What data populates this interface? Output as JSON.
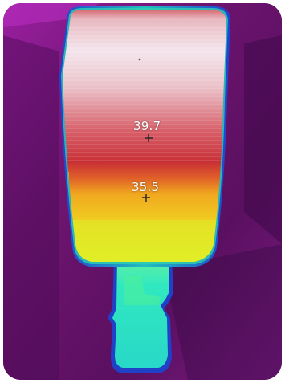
{
  "thermal_image": {
    "palette": "iron",
    "subject": "street-lamp-head",
    "colors": {
      "background": "#7a1a78",
      "background_dark": "#4a0c55",
      "hot_top": "#f2e4ec",
      "warm": "#c9303a",
      "mid": "#f0b020",
      "cool": "#e8f020",
      "neck": "#38e8c8"
    },
    "measurements": [
      {
        "label": "39.7"
      },
      {
        "label": "35.5"
      }
    ]
  }
}
